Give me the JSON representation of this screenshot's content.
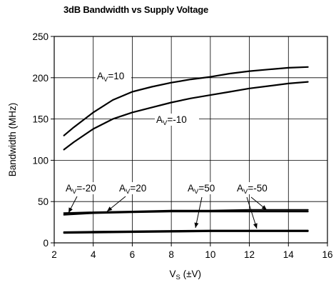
{
  "chart_data": {
    "type": "line",
    "title": "3dB Bandwidth vs Supply Voltage",
    "xlabel": {
      "main": "V",
      "sub": "S",
      "unit": " (±V)"
    },
    "ylabel": "Bandwidth (MHz)",
    "xlim": [
      2,
      16
    ],
    "ylim": [
      0,
      250
    ],
    "xticks": [
      "2",
      "4",
      "6",
      "8",
      "10",
      "12",
      "14",
      "16"
    ],
    "yticks": [
      "0",
      "50",
      "100",
      "150",
      "200",
      "250"
    ],
    "grid": true,
    "series": [
      {
        "name": "AV=10",
        "label_main": "A",
        "label_sub": "V",
        "label_val": "=10",
        "x": [
          2.5,
          3.0,
          4.0,
          5.0,
          6.0,
          7.0,
          8.0,
          9.0,
          10.0,
          11.0,
          12.0,
          13.0,
          14.0,
          15.0
        ],
        "y": [
          130,
          140,
          158,
          173,
          183,
          189,
          194,
          198,
          201,
          205,
          208,
          210,
          212,
          213
        ]
      },
      {
        "name": "AV=-10",
        "label_main": "A",
        "label_sub": "V",
        "label_val": "=-10",
        "x": [
          2.5,
          3.0,
          4.0,
          5.0,
          6.0,
          7.0,
          8.0,
          9.0,
          10.0,
          11.0,
          12.0,
          13.0,
          14.0,
          15.0
        ],
        "y": [
          113,
          122,
          138,
          150,
          158,
          164,
          170,
          175,
          179,
          183,
          187,
          190,
          193,
          195
        ]
      },
      {
        "name": "AV=-20",
        "label_main": "A",
        "label_sub": "V",
        "label_val": "=-20",
        "x": [
          2.5,
          4.0,
          6.0,
          8.0,
          10.0,
          12.0,
          15.0
        ],
        "y": [
          36,
          37,
          38,
          39,
          39,
          40,
          40
        ]
      },
      {
        "name": "AV=20",
        "label_main": "A",
        "label_sub": "V",
        "label_val": "=20",
        "x": [
          2.5,
          4.0,
          6.0,
          8.0,
          10.0,
          12.0,
          15.0
        ],
        "y": [
          34,
          36,
          37,
          38,
          38,
          38,
          38
        ]
      },
      {
        "name": "AV=50",
        "label_main": "A",
        "label_sub": "V",
        "label_val": "=50",
        "x": [
          2.5,
          4.0,
          6.0,
          8.0,
          10.0,
          12.0,
          15.0
        ],
        "y": [
          13,
          13.5,
          14,
          14.5,
          15,
          15,
          15
        ]
      },
      {
        "name": "AV=-50",
        "label_main": "A",
        "label_sub": "V",
        "label_val": "=-50",
        "x": [
          2.5,
          4.0,
          6.0,
          8.0,
          10.0,
          12.0,
          15.0
        ],
        "y": [
          12,
          12.5,
          13,
          13.5,
          14,
          14,
          14
        ]
      }
    ]
  }
}
